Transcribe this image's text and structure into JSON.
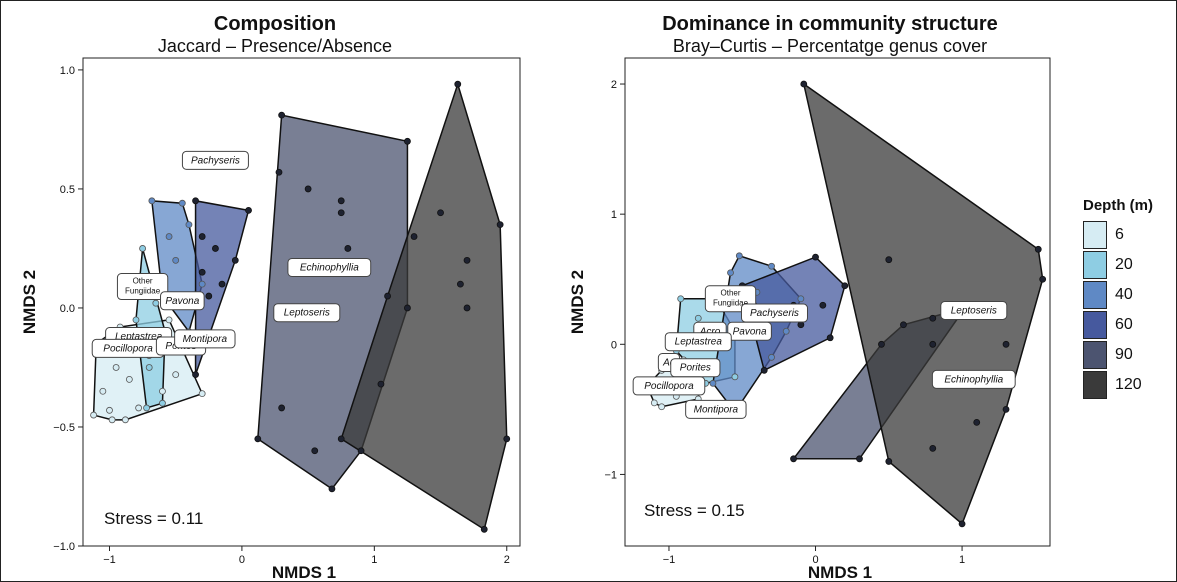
{
  "legend": {
    "title": "Depth (m)",
    "items": [
      {
        "label": "6",
        "color": "#d6ecf3"
      },
      {
        "label": "20",
        "color": "#8ecde3"
      },
      {
        "label": "40",
        "color": "#5f89c5"
      },
      {
        "label": "60",
        "color": "#46599e"
      },
      {
        "label": "90",
        "color": "#4c5470"
      },
      {
        "label": "120",
        "color": "#3a3a3a"
      }
    ]
  },
  "chart_data": [
    {
      "type": "scatter",
      "title": "Composition",
      "subtitle": "Jaccard – Presence/Absence",
      "xlabel": "NMDS 1",
      "ylabel": "NMDS 2",
      "xlim": [
        -1.2,
        2.1
      ],
      "ylim": [
        -1.0,
        1.05
      ],
      "xticks": [
        -1,
        0,
        1,
        2
      ],
      "xtick_labels": [
        "−1",
        "0",
        "1",
        "2"
      ],
      "yticks": [
        -1.0,
        -0.5,
        0.0,
        0.5,
        1.0
      ],
      "ytick_labels": [
        "−1.0",
        "−0.5",
        "0.0",
        "0.5",
        "1.0"
      ],
      "annotation": "Stress = 0.11",
      "series": [
        {
          "name": "6",
          "color": "#d6ecf3",
          "points": [
            [
              -1.1,
              -0.15
            ],
            [
              -1.12,
              -0.45
            ],
            [
              -0.98,
              -0.47
            ],
            [
              -0.88,
              -0.47
            ],
            [
              -0.78,
              -0.42
            ],
            [
              -0.5,
              -0.28
            ],
            [
              -0.3,
              -0.36
            ],
            [
              -0.55,
              -0.05
            ],
            [
              -0.92,
              -0.08
            ],
            [
              -1.05,
              -0.35
            ],
            [
              -0.95,
              -0.25
            ],
            [
              -0.85,
              -0.3
            ],
            [
              -0.7,
              -0.2
            ],
            [
              -0.6,
              -0.35
            ],
            [
              -1.0,
              -0.43
            ],
            [
              -0.9,
              -0.15
            ]
          ]
        },
        {
          "name": "20",
          "color": "#8ecde3",
          "points": [
            [
              -0.75,
              0.25
            ],
            [
              -0.7,
              0.1
            ],
            [
              -0.6,
              -0.4
            ],
            [
              -0.72,
              -0.42
            ],
            [
              -0.8,
              -0.05
            ],
            [
              -0.65,
              0.02
            ],
            [
              -0.58,
              -0.1
            ],
            [
              -0.7,
              -0.25
            ]
          ]
        },
        {
          "name": "40",
          "color": "#5f89c5",
          "points": [
            [
              -0.68,
              0.45
            ],
            [
              -0.45,
              0.44
            ],
            [
              -0.3,
              0.1
            ],
            [
              -0.4,
              -0.1
            ],
            [
              -0.6,
              0.05
            ],
            [
              -0.55,
              0.3
            ],
            [
              -0.5,
              0.2
            ],
            [
              -0.4,
              0.35
            ],
            [
              -0.45,
              0.05
            ]
          ]
        },
        {
          "name": "60",
          "color": "#46599e",
          "points": [
            [
              -0.35,
              0.45
            ],
            [
              0.05,
              0.41
            ],
            [
              -0.05,
              0.2
            ],
            [
              -0.35,
              -0.28
            ],
            [
              -0.3,
              0.3
            ],
            [
              -0.2,
              0.25
            ],
            [
              -0.15,
              0.1
            ],
            [
              -0.25,
              0.05
            ],
            [
              -0.3,
              0.15
            ]
          ]
        },
        {
          "name": "90",
          "color": "#4c5470",
          "points": [
            [
              0.3,
              0.81
            ],
            [
              1.25,
              0.7
            ],
            [
              1.25,
              0.0
            ],
            [
              0.68,
              -0.76
            ],
            [
              0.12,
              -0.55
            ],
            [
              0.28,
              0.57
            ],
            [
              0.5,
              0.5
            ],
            [
              0.75,
              0.45
            ],
            [
              0.8,
              0.25
            ],
            [
              0.3,
              -0.42
            ],
            [
              0.55,
              -0.6
            ],
            [
              0.9,
              -0.6
            ],
            [
              1.05,
              -0.32
            ],
            [
              0.75,
              0.4
            ]
          ]
        },
        {
          "name": "120",
          "color": "#3a3a3a",
          "points": [
            [
              1.63,
              0.94
            ],
            [
              1.95,
              0.35
            ],
            [
              2.0,
              -0.55
            ],
            [
              1.83,
              -0.93
            ],
            [
              0.75,
              -0.55
            ],
            [
              1.7,
              0.2
            ],
            [
              1.65,
              0.1
            ],
            [
              1.7,
              0.0
            ],
            [
              1.5,
              0.4
            ],
            [
              1.1,
              0.05
            ],
            [
              1.3,
              0.3
            ]
          ]
        }
      ],
      "labels": [
        {
          "text": "Pachyseris",
          "x": -0.2,
          "y": 0.62
        },
        {
          "text": "Other\nFungiidae",
          "x": -0.75,
          "y": 0.09
        },
        {
          "text": "Pavona",
          "x": -0.45,
          "y": 0.03
        },
        {
          "text": "Echinophyllia",
          "x": 0.66,
          "y": 0.17
        },
        {
          "text": "Leptoseris",
          "x": 0.49,
          "y": -0.02
        },
        {
          "text": "Leptastrea",
          "x": -0.78,
          "y": -0.12
        },
        {
          "text": "Pocillopora",
          "x": -0.86,
          "y": -0.17
        },
        {
          "text": "Porites",
          "x": -0.46,
          "y": -0.16
        },
        {
          "text": "Montipora",
          "x": -0.28,
          "y": -0.13
        }
      ]
    },
    {
      "type": "scatter",
      "title": "Dominance in community structure",
      "subtitle": "Bray–Curtis – Percentatge genus cover",
      "xlabel": "NMDS 1",
      "ylabel": "NMDS 2",
      "xlim": [
        -1.3,
        1.6
      ],
      "ylim": [
        -1.55,
        2.2
      ],
      "xticks": [
        -1,
        0,
        1
      ],
      "xtick_labels": [
        "−1",
        "0",
        "1"
      ],
      "yticks": [
        -1,
        0,
        1,
        2
      ],
      "ytick_labels": [
        "−1",
        "0",
        "1",
        "2"
      ],
      "annotation": "Stress = 0.15",
      "series": [
        {
          "name": "6",
          "color": "#d6ecf3",
          "points": [
            [
              -1.15,
              -0.32
            ],
            [
              -1.05,
              -0.2
            ],
            [
              -0.9,
              -0.12
            ],
            [
              -0.78,
              -0.22
            ],
            [
              -0.8,
              -0.42
            ],
            [
              -1.05,
              -0.48
            ],
            [
              -1.1,
              -0.45
            ],
            [
              -0.95,
              -0.4
            ],
            [
              -0.85,
              -0.35
            ],
            [
              -1.0,
              -0.3
            ]
          ]
        },
        {
          "name": "20",
          "color": "#8ecde3",
          "points": [
            [
              -0.92,
              0.35
            ],
            [
              -0.68,
              0.35
            ],
            [
              -0.55,
              0.1
            ],
            [
              -0.55,
              -0.25
            ],
            [
              -0.75,
              -0.3
            ],
            [
              -0.95,
              -0.05
            ],
            [
              -0.8,
              0.2
            ]
          ]
        },
        {
          "name": "40",
          "color": "#5f89c5",
          "points": [
            [
              -0.58,
              0.55
            ],
            [
              -0.52,
              0.68
            ],
            [
              -0.3,
              0.6
            ],
            [
              -0.1,
              0.35
            ],
            [
              -0.3,
              -0.1
            ],
            [
              -0.55,
              -0.52
            ],
            [
              -0.7,
              -0.3
            ],
            [
              -0.4,
              0.4
            ],
            [
              -0.35,
              0.2
            ],
            [
              -0.2,
              0.1
            ]
          ]
        },
        {
          "name": "60",
          "color": "#46599e",
          "points": [
            [
              -0.5,
              0.45
            ],
            [
              -0.42,
              0.3
            ],
            [
              0.0,
              0.67
            ],
            [
              0.2,
              0.45
            ],
            [
              0.1,
              0.05
            ],
            [
              -0.35,
              -0.2
            ],
            [
              -0.15,
              0.3
            ],
            [
              -0.1,
              0.15
            ],
            [
              0.05,
              0.3
            ]
          ]
        },
        {
          "name": "90",
          "color": "#4c5470",
          "points": [
            [
              -0.15,
              -0.88
            ],
            [
              0.3,
              -0.88
            ],
            [
              0.45,
              0.0
            ],
            [
              0.8,
              0.2
            ],
            [
              1.02,
              0.28
            ],
            [
              0.6,
              0.15
            ]
          ]
        },
        {
          "name": "120",
          "color": "#3a3a3a",
          "points": [
            [
              -0.08,
              2.0
            ],
            [
              1.52,
              0.73
            ],
            [
              1.55,
              0.5
            ],
            [
              1.3,
              -0.5
            ],
            [
              1.0,
              -1.38
            ],
            [
              0.5,
              -0.9
            ],
            [
              0.5,
              0.65
            ],
            [
              0.8,
              0.0
            ],
            [
              1.2,
              0.3
            ],
            [
              1.3,
              0.0
            ],
            [
              0.9,
              -0.3
            ],
            [
              0.8,
              -0.8
            ],
            [
              1.1,
              -0.6
            ]
          ]
        }
      ],
      "labels": [
        {
          "text": "Other\nFungiidae",
          "x": -0.58,
          "y": 0.35
        },
        {
          "text": "Pachyseris",
          "x": -0.28,
          "y": 0.24
        },
        {
          "text": "Pavona",
          "x": -0.45,
          "y": 0.1
        },
        {
          "text": "Acro",
          "x": -0.72,
          "y": 0.1
        },
        {
          "text": "Leptastrea",
          "x": -0.8,
          "y": 0.02
        },
        {
          "text": "Ac",
          "x": -1.0,
          "y": -0.14
        },
        {
          "text": "Porites",
          "x": -0.82,
          "y": -0.18
        },
        {
          "text": "Pocillopora",
          "x": -1.0,
          "y": -0.32
        },
        {
          "text": "Montipora",
          "x": -0.68,
          "y": -0.5
        },
        {
          "text": "Leptoseris",
          "x": 1.08,
          "y": 0.26
        },
        {
          "text": "Echinophyllia",
          "x": 1.08,
          "y": -0.27
        }
      ]
    }
  ]
}
